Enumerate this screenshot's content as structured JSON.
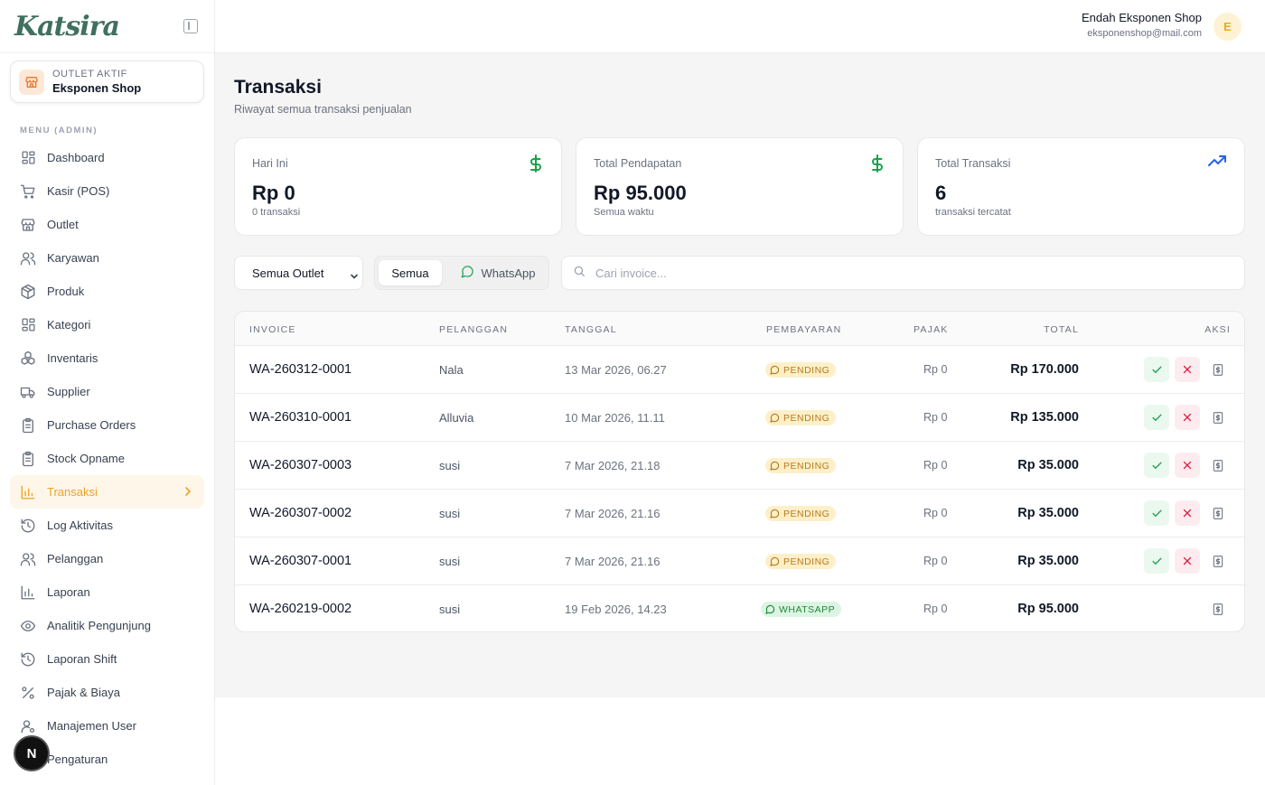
{
  "brand": {
    "name": "Katsira"
  },
  "outlet": {
    "label": "OUTLET AKTIF",
    "name": "Eksponen Shop"
  },
  "menu": {
    "heading": "MENU (ADMIN)",
    "items": [
      {
        "label": "Dashboard",
        "icon": "grid-icon"
      },
      {
        "label": "Kasir (POS)",
        "icon": "cart-icon"
      },
      {
        "label": "Outlet",
        "icon": "store-icon"
      },
      {
        "label": "Karyawan",
        "icon": "users-icon"
      },
      {
        "label": "Produk",
        "icon": "package-icon"
      },
      {
        "label": "Kategori",
        "icon": "grid-icon"
      },
      {
        "label": "Inventaris",
        "icon": "boxes-icon"
      },
      {
        "label": "Supplier",
        "icon": "truck-icon"
      },
      {
        "label": "Purchase Orders",
        "icon": "clipboard-icon"
      },
      {
        "label": "Stock Opname",
        "icon": "clipboard-icon"
      },
      {
        "label": "Transaksi",
        "icon": "bar-chart-icon",
        "active": true
      },
      {
        "label": "Log Aktivitas",
        "icon": "history-icon"
      },
      {
        "label": "Pelanggan",
        "icon": "users-icon"
      },
      {
        "label": "Laporan",
        "icon": "bar-chart-icon"
      },
      {
        "label": "Analitik Pengunjung",
        "icon": "eye-icon"
      },
      {
        "label": "Laporan Shift",
        "icon": "history-icon"
      },
      {
        "label": "Pajak & Biaya",
        "icon": "percent-icon"
      },
      {
        "label": "Manajemen User",
        "icon": "user-cog-icon"
      },
      {
        "label": "Pengaturan",
        "icon": "gear-icon"
      }
    ]
  },
  "dev_badge": "N",
  "header": {
    "user_name": "Endah Eksponen Shop",
    "user_email": "eksponenshop@mail.com",
    "avatar_initial": "E"
  },
  "page": {
    "title": "Transaksi",
    "subtitle": "Riwayat semua transaksi penjualan"
  },
  "stats": [
    {
      "label": "Hari Ini",
      "value": "Rp 0",
      "sub": "0 transaksi",
      "icon": "dollar-icon",
      "color": "#16a34a"
    },
    {
      "label": "Total Pendapatan",
      "value": "Rp 95.000",
      "sub": "Semua waktu",
      "icon": "dollar-icon",
      "color": "#16a34a"
    },
    {
      "label": "Total Transaksi",
      "value": "6",
      "sub": "transaksi tercatat",
      "icon": "trending-up-icon",
      "color": "#2563eb"
    }
  ],
  "filters": {
    "outlet_select": "Semua Outlet",
    "segment_all": "Semua",
    "segment_whatsapp": "WhatsApp",
    "search_placeholder": "Cari invoice..."
  },
  "table": {
    "columns": {
      "invoice": "INVOICE",
      "customer": "PELANGGAN",
      "date": "TANGGAL",
      "payment": "PEMBAYARAN",
      "tax": "PAJAK",
      "total": "TOTAL",
      "action": "AKSI"
    },
    "rows": [
      {
        "invoice": "WA-260312-0001",
        "customer": "Nala",
        "date": "13 Mar 2026, 06.27",
        "payment": "PENDING",
        "tax": "Rp 0",
        "total": "Rp 170.000"
      },
      {
        "invoice": "WA-260310-0001",
        "customer": "Alluvia",
        "date": "10 Mar 2026, 11.11",
        "payment": "PENDING",
        "tax": "Rp 0",
        "total": "Rp 135.000"
      },
      {
        "invoice": "WA-260307-0003",
        "customer": "susi",
        "date": "7 Mar 2026, 21.18",
        "payment": "PENDING",
        "tax": "Rp 0",
        "total": "Rp 35.000"
      },
      {
        "invoice": "WA-260307-0002",
        "customer": "susi",
        "date": "7 Mar 2026, 21.16",
        "payment": "PENDING",
        "tax": "Rp 0",
        "total": "Rp 35.000"
      },
      {
        "invoice": "WA-260307-0001",
        "customer": "susi",
        "date": "7 Mar 2026, 21.16",
        "payment": "PENDING",
        "tax": "Rp 0",
        "total": "Rp 35.000"
      },
      {
        "invoice": "WA-260219-0002",
        "customer": "susi",
        "date": "19 Feb 2026, 14.23",
        "payment": "WHATSAPP",
        "tax": "Rp 0",
        "total": "Rp 95.000"
      }
    ]
  }
}
